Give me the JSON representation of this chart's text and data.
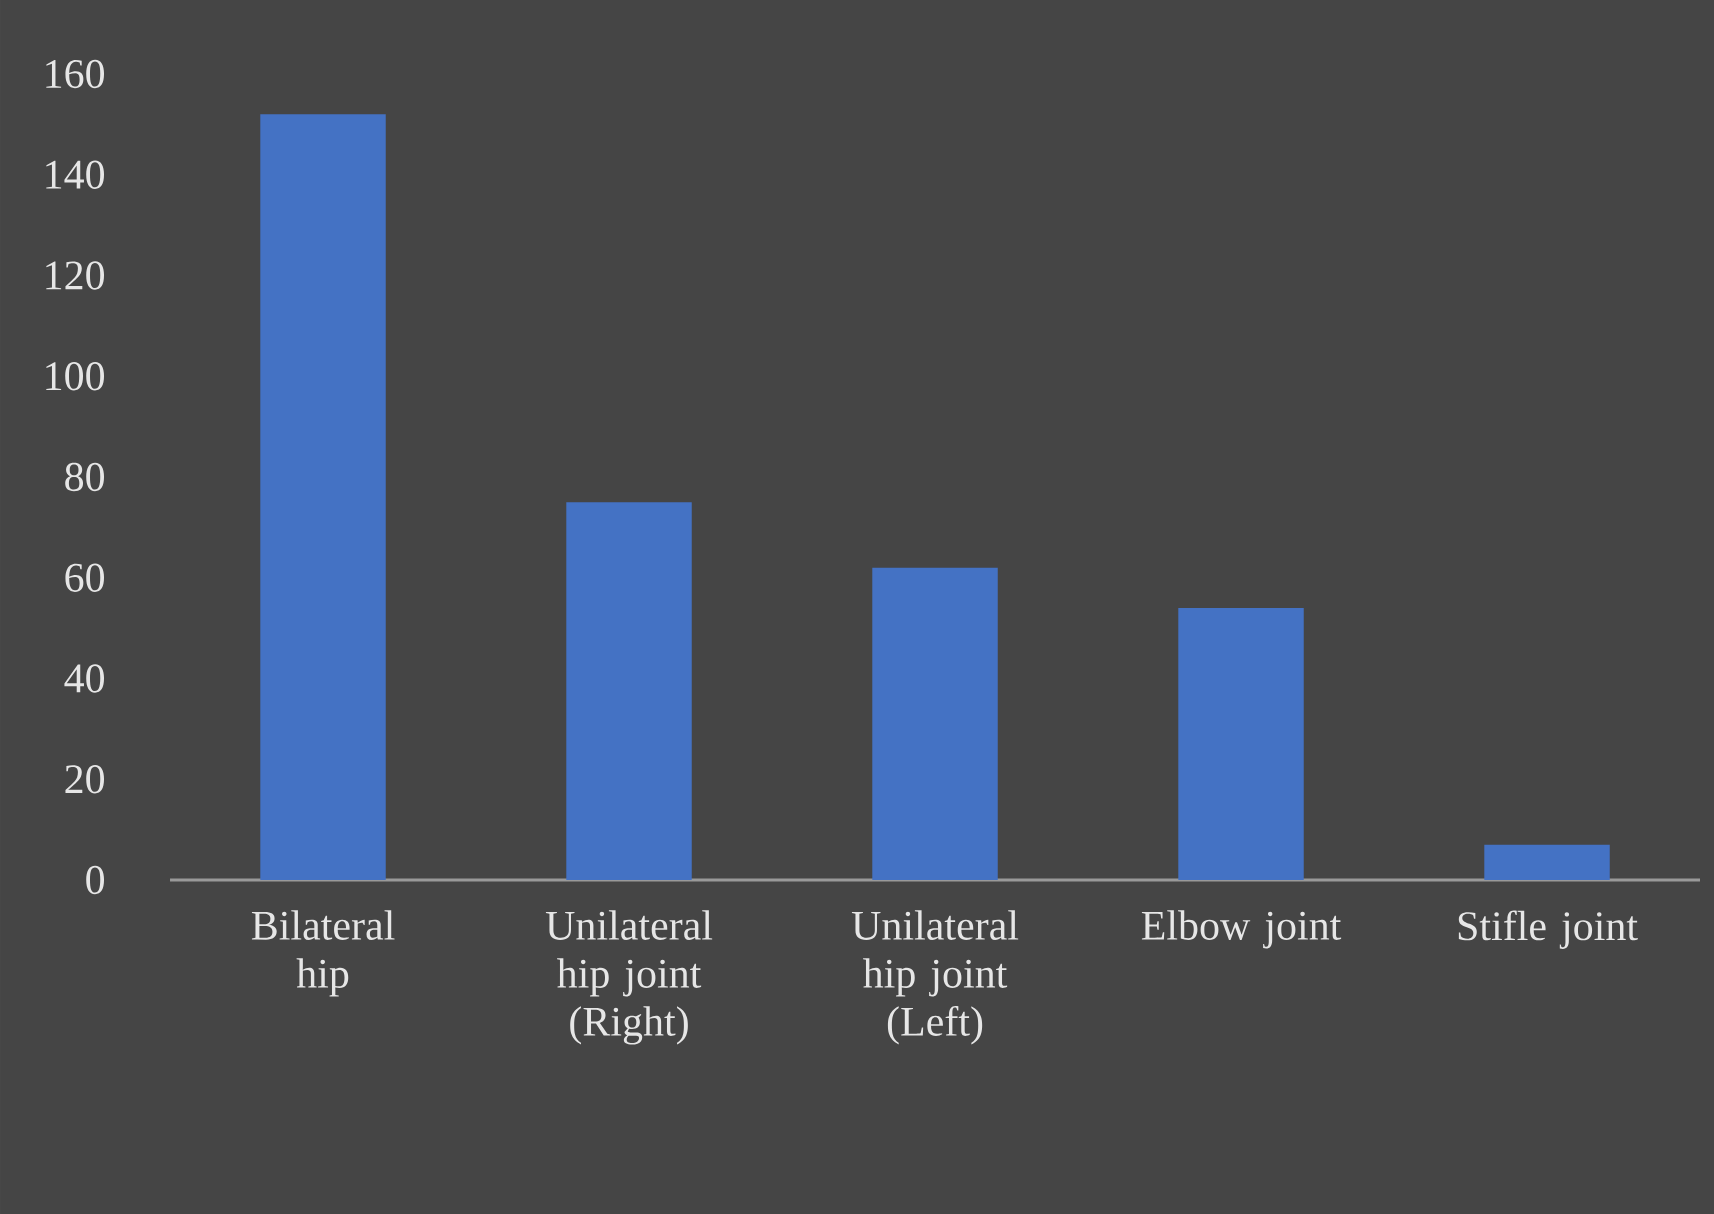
{
  "chart_data": {
    "type": "bar",
    "categories": [
      "Bilateral hip",
      "Unilateral hip joint (Right)",
      "Unilateral hip joint (Left)",
      "Elbow joint",
      "Stifle joint"
    ],
    "values": [
      152,
      75,
      62,
      54,
      7
    ],
    "color": "#4472c4",
    "ylim": [
      0,
      160
    ],
    "yticks": [
      0,
      20,
      40,
      60,
      80,
      100,
      120,
      140,
      160
    ]
  }
}
